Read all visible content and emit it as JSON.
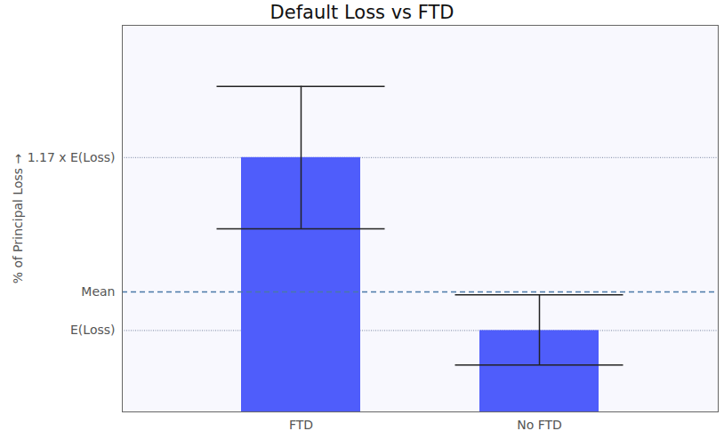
{
  "chart_data": {
    "type": "bar",
    "title": "Default Loss vs FTD",
    "y_label": "% of Principal Loss",
    "categories": [
      "FTD",
      "No FTD"
    ],
    "values": [
      1.17,
      1.0
    ],
    "error": [
      [
        1.1,
        1.24
      ],
      [
        0.966,
        1.035
      ]
    ],
    "mean": 1.038,
    "color": "#4f5dfb",
    "ylim": [
      0.92,
      1.3
    ],
    "yticks": [
      {
        "value": 1.0,
        "label": "E(Loss)"
      },
      {
        "value": 1.038,
        "label": "Mean"
      },
      {
        "value": 1.17,
        "label": "1.17 x E(Loss)"
      }
    ],
    "grid": true
  }
}
